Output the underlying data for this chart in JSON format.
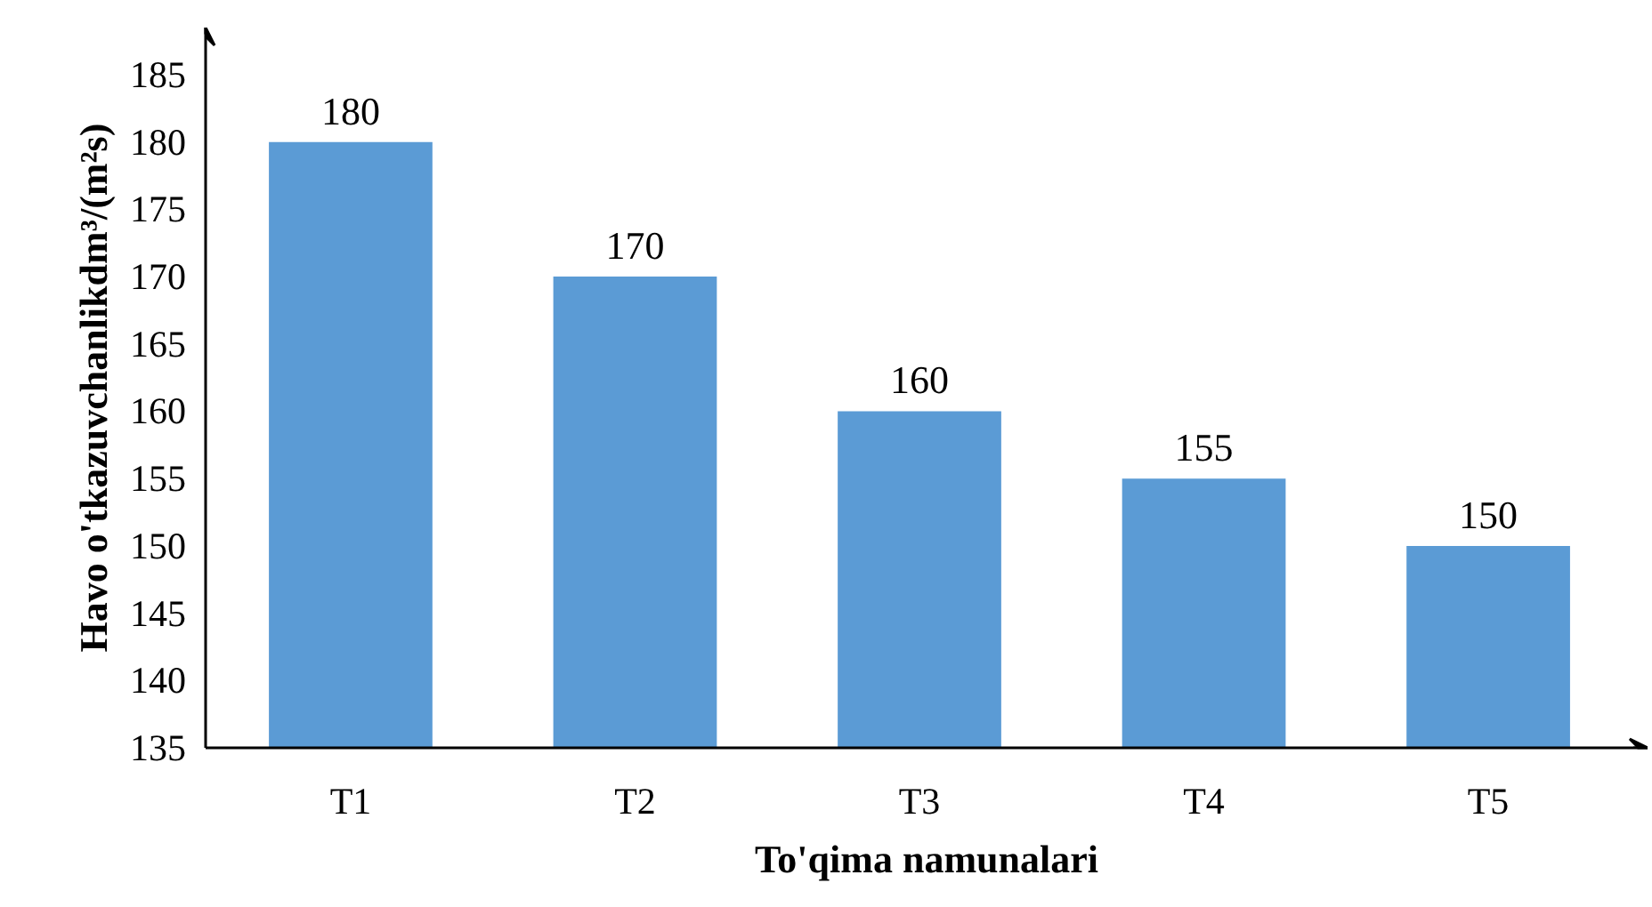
{
  "chart_data": {
    "type": "bar",
    "xlabel": "To'qima namunalari",
    "ylabel": "Havo o'tkazuvchanlikdm³/(m²s)",
    "categories": [
      "T1",
      "T2",
      "T3",
      "T4",
      "T5"
    ],
    "values": [
      180,
      170,
      160,
      155,
      150
    ],
    "color": "#5b9bd5",
    "ylim": [
      135,
      188.5
    ],
    "yticks": [
      135,
      140,
      145,
      150,
      155,
      160,
      165,
      170,
      175,
      180,
      185
    ],
    "data_labels": true
  }
}
